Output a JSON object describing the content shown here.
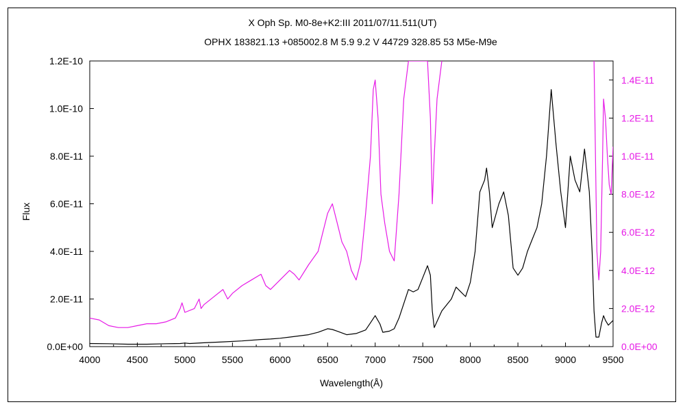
{
  "chart_data": {
    "type": "line",
    "title": "X Oph    Sp. M0-8e+K2:III    2011/07/11.511(UT)",
    "subtitle": "OPHX 183821.13 +085002.8 M 5.9 9.2 V 44729 328.85 53 M5e-M9e",
    "xlabel": "Wavelength(Å)",
    "ylabel": "Flux",
    "xlim": [
      4000,
      9500
    ],
    "ylim": [
      0,
      1.2e-10
    ],
    "y2lim": [
      0,
      1.5e-11
    ],
    "x_ticks": [
      "4000",
      "4500",
      "5000",
      "5500",
      "6000",
      "6500",
      "7000",
      "7500",
      "8000",
      "8500",
      "9000",
      "9500"
    ],
    "y_ticks": [
      "0.0E+00",
      "2.0E-11",
      "4.0E-11",
      "6.0E-11",
      "8.0E-11",
      "1.0E-10",
      "1.2E-10"
    ],
    "y2_ticks": [
      "0.0E+00",
      "2.0E-12",
      "4.0E-12",
      "6.0E-12",
      "8.0E-12",
      "1.0E-11",
      "1.2E-11",
      "1.4E-11"
    ],
    "grid": false,
    "colors": {
      "primary": "#000000",
      "secondary": "#e619e6"
    },
    "series": [
      {
        "axis": "left",
        "color": "#000000",
        "x": [
          4000,
          4200,
          4400,
          4600,
          4800,
          4950,
          5000,
          5050,
          5200,
          5400,
          5600,
          5800,
          5900,
          6000,
          6100,
          6200,
          6300,
          6400,
          6500,
          6550,
          6600,
          6700,
          6800,
          6900,
          6950,
          7000,
          7050,
          7080,
          7150,
          7200,
          7250,
          7300,
          7350,
          7400,
          7450,
          7500,
          7550,
          7580,
          7600,
          7620,
          7700,
          7800,
          7850,
          7900,
          7950,
          8000,
          8050,
          8100,
          8150,
          8170,
          8200,
          8230,
          8300,
          8350,
          8400,
          8450,
          8500,
          8550,
          8600,
          8650,
          8700,
          8750,
          8800,
          8850,
          8900,
          8950,
          9000,
          9050,
          9100,
          9150,
          9200,
          9250,
          9280,
          9300,
          9320,
          9350,
          9380,
          9400,
          9420,
          9450,
          9500
        ],
        "y": [
          1.3e-12,
          1.2e-12,
          1e-12,
          1e-12,
          1.2e-12,
          1.3e-12,
          1.5e-12,
          1.3e-12,
          1.6e-12,
          2e-12,
          2.4e-12,
          3e-12,
          3.2e-12,
          3.5e-12,
          4e-12,
          4.5e-12,
          5e-12,
          6e-12,
          7.5e-12,
          7.2e-12,
          6.5e-12,
          5e-12,
          5.5e-12,
          7e-12,
          1e-11,
          1.3e-11,
          9.5e-12,
          6e-12,
          6.5e-12,
          7.5e-12,
          1.2e-11,
          1.8e-11,
          2.4e-11,
          2.3e-11,
          2.4e-11,
          2.9e-11,
          3.4e-11,
          3e-11,
          1.5e-11,
          8e-12,
          1.5e-11,
          2e-11,
          2.5e-11,
          2.3e-11,
          2.1e-11,
          2.7e-11,
          4e-11,
          6.5e-11,
          7e-11,
          7.5e-11,
          6.5e-11,
          5e-11,
          6e-11,
          6.5e-11,
          5.5e-11,
          3.3e-11,
          3e-11,
          3.3e-11,
          4e-11,
          4.5e-11,
          5e-11,
          6e-11,
          8e-11,
          1.08e-10,
          8.5e-11,
          6.5e-11,
          5e-11,
          8e-11,
          7e-11,
          6.5e-11,
          8.3e-11,
          6.5e-11,
          4e-11,
          1.5e-11,
          4e-12,
          4e-12,
          1e-11,
          1.3e-11,
          1.1e-11,
          9e-12,
          1.1e-11
        ]
      },
      {
        "axis": "right",
        "color": "#e619e6",
        "x": [
          4000,
          4100,
          4200,
          4300,
          4400,
          4500,
          4600,
          4700,
          4800,
          4900,
          4950,
          4970,
          5000,
          5100,
          5150,
          5170,
          5200,
          5300,
          5400,
          5450,
          5500,
          5600,
          5700,
          5800,
          5850,
          5900,
          6000,
          6100,
          6150,
          6200,
          6300,
          6400,
          6450,
          6500,
          6550,
          6600,
          6650,
          6700,
          6750,
          6800,
          6850,
          6900,
          6950,
          6980,
          7000,
          7030,
          7060,
          7100,
          7150,
          7200,
          7250,
          7300,
          7350,
          7400,
          7450,
          7500,
          7550,
          7580,
          7600,
          7620,
          7650,
          7700
        ],
        "y": [
          1.5e-12,
          1.4e-12,
          1.1e-12,
          1e-12,
          1e-12,
          1.1e-12,
          1.2e-12,
          1.2e-12,
          1.3e-12,
          1.5e-12,
          2e-12,
          2.3e-12,
          1.8e-12,
          2e-12,
          2.5e-12,
          2e-12,
          2.2e-12,
          2.6e-12,
          3e-12,
          2.5e-12,
          2.8e-12,
          3.2e-12,
          3.5e-12,
          3.8e-12,
          3.2e-12,
          3e-12,
          3.5e-12,
          4e-12,
          3.8e-12,
          3.5e-12,
          4.3e-12,
          5e-12,
          6e-12,
          7e-12,
          7.5e-12,
          6.5e-12,
          5.5e-12,
          5e-12,
          4e-12,
          3.5e-12,
          4.5e-12,
          7e-12,
          1e-11,
          1.35e-11,
          1.4e-11,
          1.2e-11,
          8e-12,
          6.5e-12,
          5e-12,
          4.5e-12,
          8e-12,
          1.3e-11,
          1.5e-11,
          1.5e-11,
          1.5e-11,
          1.5e-11,
          1.5e-11,
          1.2e-11,
          7.5e-12,
          1e-11,
          1.3e-11,
          1.5e-11
        ]
      },
      {
        "axis": "right",
        "color": "#e619e6",
        "x": [
          9300,
          9330,
          9350,
          9370,
          9390,
          9400,
          9420,
          9440,
          9460,
          9480,
          9500
        ],
        "y": [
          1.5e-11,
          5e-12,
          3.5e-12,
          5e-12,
          1e-11,
          1.3e-11,
          1.2e-11,
          1e-11,
          8.5e-12,
          8e-12,
          1.05e-11
        ]
      }
    ]
  }
}
